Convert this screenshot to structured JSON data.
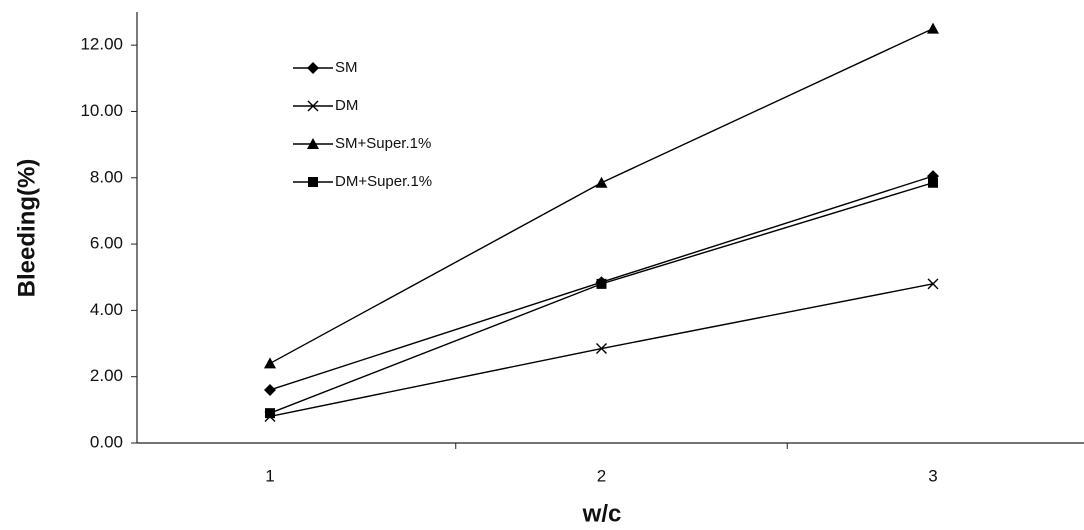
{
  "chart_data": {
    "type": "line",
    "x_label": "w/c",
    "y_label": "Bleeding(%)",
    "categories": [
      "1",
      "2",
      "3"
    ],
    "series": [
      {
        "name": "SM",
        "color": "#000000",
        "marker": "diamond",
        "values": [
          1.6,
          4.85,
          8.05
        ]
      },
      {
        "name": "DM",
        "color": "#000000",
        "marker": "x",
        "values": [
          0.8,
          2.85,
          4.8
        ]
      },
      {
        "name": "SM+Super.1%",
        "color": "#000000",
        "marker": "triangle",
        "values": [
          2.4,
          7.85,
          12.5
        ]
      },
      {
        "name": "DM+Super.1%",
        "color": "#000000",
        "marker": "square",
        "values": [
          0.9,
          4.8,
          7.85
        ]
      }
    ],
    "ylim": [
      0,
      13
    ],
    "yticks": [
      {
        "value": 0,
        "label": "0.00"
      },
      {
        "value": 2,
        "label": "2.00"
      },
      {
        "value": 4,
        "label": "4.00"
      },
      {
        "value": 6,
        "label": "6.00"
      },
      {
        "value": 8,
        "label": "8.00"
      },
      {
        "value": 10,
        "label": "10.00"
      },
      {
        "value": 12,
        "label": "12.00"
      }
    ],
    "grid": false,
    "legend": "upper-left"
  }
}
